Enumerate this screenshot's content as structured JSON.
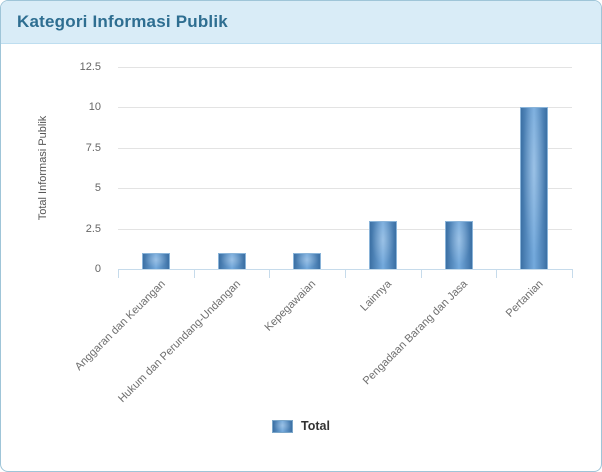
{
  "header": {
    "title": "Kategori Informasi Publik"
  },
  "chart_data": {
    "type": "bar",
    "title": "Kategori Informasi Publik",
    "categories": [
      "Anggaran dan Keuangan",
      "Hukum dan Perundang-Undangan",
      "Kepegawaian",
      "Lainnya",
      "Pengadaan Barang dan Jasa",
      "Pertanian"
    ],
    "series": [
      {
        "name": "Total",
        "values": [
          1,
          1,
          1,
          3,
          3,
          10
        ]
      }
    ],
    "xlabel": "",
    "ylabel": "Total Informasi Publik",
    "ylim": [
      0,
      12.5
    ],
    "yticks": [
      0,
      2.5,
      5,
      7.5,
      10,
      12.5
    ],
    "grid": true,
    "legend_position": "bottom"
  },
  "legend": {
    "items": [
      {
        "label": "Total"
      }
    ]
  },
  "colors": {
    "header_bg": "#d9ecf7",
    "header_title": "#2e6e91",
    "bar_edge": "#3c70a4",
    "bar_center": "#74aadd",
    "bar_border": "#8ab4d9",
    "axis_line": "#c6dbeb",
    "gridline": "#e3e3e3"
  }
}
